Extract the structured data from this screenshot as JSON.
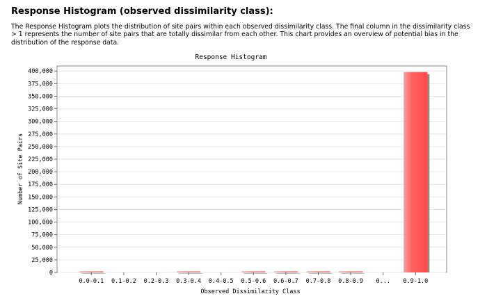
{
  "page": {
    "heading": "Response Histogram (observed dissimilarity class):",
    "description": "The Response Histogram plots the distribution of site pairs within each observed dissimilarity class. The final column in the dissimilarity class > 1 represents the number of site pairs that are totally dissimilar from each other. This chart provides an overview of potential bias in the distribution of the response data."
  },
  "chart_data": {
    "type": "bar",
    "title": "Response Histogram",
    "xlabel": "Observed Dissimilarity Class",
    "ylabel": "Number of Site Pairs",
    "categories": [
      "0.0-0.1",
      "0.1-0.2",
      "0.2-0.3",
      "0.3-0.4",
      "0.4-0.5",
      "0.5-0.6",
      "0.6-0.7",
      "0.7-0.8",
      "0.8-0.9",
      "0...",
      "0.9-1.0"
    ],
    "values": [
      1500,
      0,
      0,
      1200,
      0,
      800,
      500,
      600,
      400,
      0,
      398000
    ],
    "ylim": [
      0,
      410000
    ],
    "yticks": [
      "0",
      "25,000",
      "50,000",
      "75,000",
      "100,000",
      "125,000",
      "150,000",
      "175,000",
      "200,000",
      "225,000",
      "250,000",
      "275,000",
      "300,000",
      "325,000",
      "350,000",
      "375,000",
      "400,000"
    ],
    "ytick_values": [
      0,
      25000,
      50000,
      75000,
      100000,
      125000,
      150000,
      175000,
      200000,
      225000,
      250000,
      275000,
      300000,
      325000,
      350000,
      375000,
      400000
    ],
    "grid": true,
    "bar_color": "#ff5c5c"
  }
}
